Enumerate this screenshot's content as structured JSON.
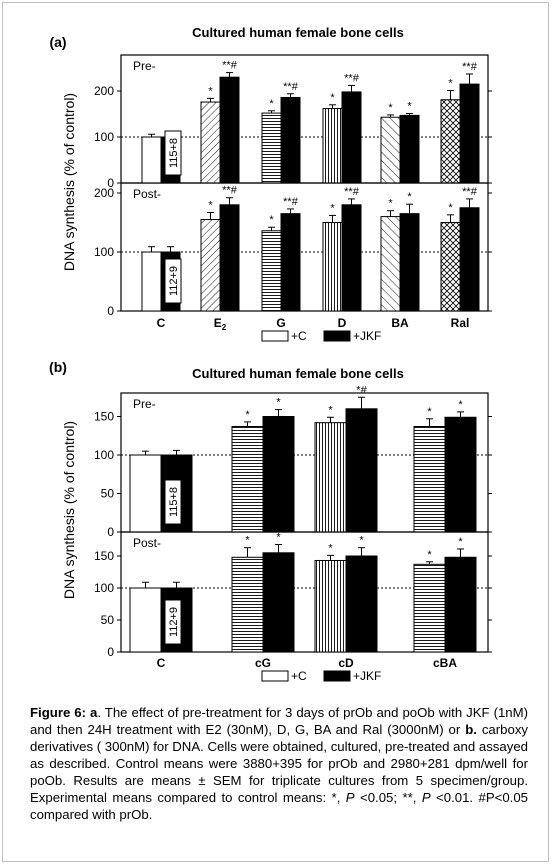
{
  "chart_data": [
    {
      "type": "bar",
      "panel_label": "(a)",
      "title": "Cultured human female bone cells",
      "ylabel": "DNA synthesis (% of control)",
      "categories": [
        "C",
        "E",
        "G",
        "D",
        "BA",
        "Ral"
      ],
      "category_subscripts": [
        "",
        "2",
        "",
        "",
        "",
        ""
      ],
      "legend": [
        "+C",
        "+JKF"
      ],
      "legend_placement": "bottom-center",
      "reference_line": 100,
      "control_note_color": "#000000",
      "subpanels": [
        {
          "label": "Pre-",
          "ylim": [
            0,
            250
          ],
          "yticks": [
            0,
            100,
            200
          ],
          "control_note": "115+8",
          "series": [
            {
              "name": "+C",
              "values": [
                100,
                176,
                152,
                162,
                143,
                181
              ],
              "errors": [
                6,
                8,
                5,
                8,
                5,
                20
              ],
              "marks": [
                "",
                "*",
                "*",
                "*",
                "*",
                "*"
              ]
            },
            {
              "name": "+JKF",
              "values": [
                100,
                230,
                186,
                198,
                147,
                215
              ],
              "errors": [
                5,
                10,
                8,
                14,
                4,
                22
              ],
              "marks": [
                "",
                "**#",
                "**#",
                "**#",
                "*",
                "**#"
              ]
            }
          ]
        },
        {
          "label": "Post-",
          "ylim": [
            0,
            200
          ],
          "yticks": [
            0,
            100,
            200
          ],
          "control_note": "112+9",
          "series": [
            {
              "name": "+C",
              "values": [
                100,
                155,
                136,
                150,
                160,
                150
              ],
              "errors": [
                9,
                12,
                6,
                12,
                10,
                13
              ],
              "marks": [
                "",
                "*",
                "*",
                "*",
                "*",
                "*"
              ]
            },
            {
              "name": "+JKF",
              "values": [
                100,
                180,
                165,
                180,
                165,
                175
              ],
              "errors": [
                9,
                12,
                8,
                10,
                16,
                15
              ],
              "marks": [
                "",
                "**#",
                "**#",
                "**#",
                "*",
                "**#"
              ]
            }
          ]
        }
      ]
    },
    {
      "type": "bar",
      "panel_label": "(b)",
      "title": "Cultured human female bone cells",
      "ylabel": "DNA synthesis (% of control)",
      "categories": [
        "C",
        "cG",
        "cD",
        "cBA"
      ],
      "category_subscripts": [
        "",
        "",
        "",
        ""
      ],
      "legend": [
        "+C",
        "+JKF"
      ],
      "legend_placement": "bottom-center",
      "reference_line": 100,
      "subpanels": [
        {
          "label": "Pre-",
          "ylim": [
            0,
            175
          ],
          "yticks": [
            0,
            50,
            100,
            150
          ],
          "control_note": "115+8",
          "series": [
            {
              "name": "+C",
              "values": [
                100,
                137,
                142,
                137
              ],
              "errors": [
                5,
                6,
                7,
                10
              ],
              "marks": [
                "",
                "*",
                "*",
                "*"
              ]
            },
            {
              "name": "+JKF",
              "values": [
                100,
                150,
                160,
                149
              ],
              "errors": [
                6,
                9,
                15,
                7
              ],
              "marks": [
                "",
                "*",
                "*#",
                "*"
              ]
            }
          ]
        },
        {
          "label": "Post-",
          "ylim": [
            0,
            175
          ],
          "yticks": [
            0,
            50,
            100,
            150
          ],
          "control_note": "112+9",
          "series": [
            {
              "name": "+C",
              "values": [
                100,
                148,
                143,
                137
              ],
              "errors": [
                9,
                15,
                8,
                4
              ],
              "marks": [
                "",
                "*",
                "*",
                "*"
              ]
            },
            {
              "name": "+JKF",
              "values": [
                100,
                155,
                150,
                148
              ],
              "errors": [
                9,
                13,
                13,
                13
              ],
              "marks": [
                "",
                "*",
                "*",
                "*"
              ]
            }
          ]
        }
      ]
    }
  ],
  "caption": {
    "lead": "Figure 6:",
    "part_a": "a",
    "text_1": ". The effect of pre-treatment for 3 days of prOb and poOb with JKF (1nM) and then 24H treatment with E2 (30nM), D, G, BA and Ral (3000nM) or ",
    "part_b": "b.",
    "text_2": " carboxy derivatives ( 300nM) for DNA. Cells were obtained, cultured, pre-treated and assayed as described. Control means were 3880+395 for prOb and 2980+281 dpm/well for poOb. Results are means ± SEM for triplicate cultures from 5 specimen/group. Experimental means compared to control means: *, ",
    "p1": "P",
    "text_3": " <0.05; **, ",
    "p2": "P",
    "text_4": " <0.01. #P<0.05 compared with prOb."
  }
}
